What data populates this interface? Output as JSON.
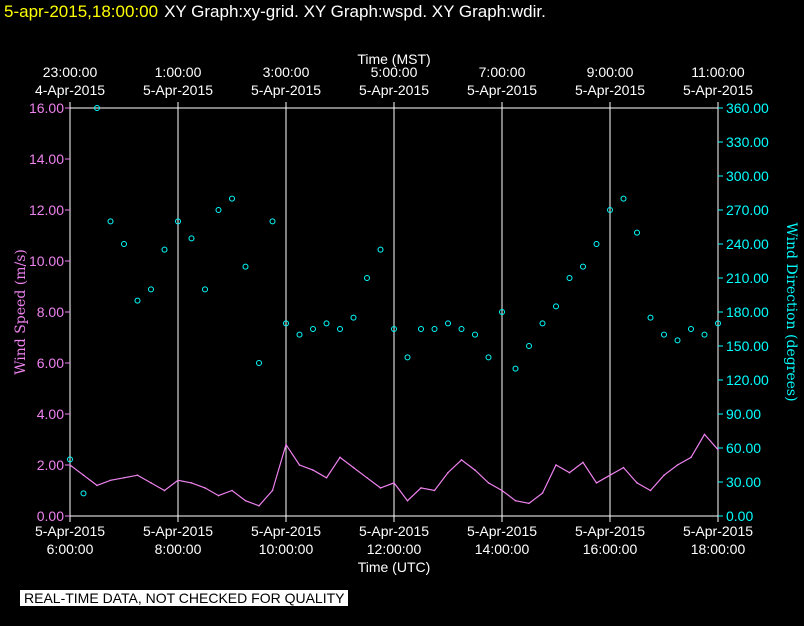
{
  "header": {
    "timestamp": "5-apr-2015,18:00:00",
    "graph_title": "XY Graph:xy-grid.  XY Graph:wspd.  XY Graph:wdir."
  },
  "footer_note": "REAL-TIME DATA, NOT CHECKED FOR QUALITY",
  "colors": {
    "background": "#000000",
    "speed": "#ee82ee",
    "direction": "#00ffff",
    "header_time": "#ffff00"
  },
  "chart_data": {
    "type": "line",
    "top_axis_title": "Time (MST)",
    "bottom_axis_title": "Time (UTC)",
    "left_axis_label": "Wind Speed (m/s)",
    "right_axis_label": "Wind Direction (degrees)",
    "x_range_utc_hours": [
      6,
      18
    ],
    "left_ylim": [
      0,
      16
    ],
    "right_ylim": [
      0,
      360
    ],
    "grid": "vertical lines at every 2-hour tick",
    "bottom_ticks": [
      {
        "t": 6,
        "date": "5-Apr-2015",
        "time": "6:00:00"
      },
      {
        "t": 8,
        "date": "5-Apr-2015",
        "time": "8:00:00"
      },
      {
        "t": 10,
        "date": "5-Apr-2015",
        "time": "10:00:00"
      },
      {
        "t": 12,
        "date": "5-Apr-2015",
        "time": "12:00:00"
      },
      {
        "t": 14,
        "date": "5-Apr-2015",
        "time": "14:00:00"
      },
      {
        "t": 16,
        "date": "5-Apr-2015",
        "time": "16:00:00"
      },
      {
        "t": 18,
        "date": "5-Apr-2015",
        "time": "18:00:00"
      }
    ],
    "top_ticks": [
      {
        "t": 6,
        "time": "23:00:00",
        "date": "4-Apr-2015"
      },
      {
        "t": 8,
        "time": "1:00:00",
        "date": "5-Apr-2015"
      },
      {
        "t": 10,
        "time": "3:00:00",
        "date": "5-Apr-2015"
      },
      {
        "t": 12,
        "time": "5:00:00",
        "date": "5-Apr-2015"
      },
      {
        "t": 14,
        "time": "7:00:00",
        "date": "5-Apr-2015"
      },
      {
        "t": 16,
        "time": "9:00:00",
        "date": "5-Apr-2015"
      },
      {
        "t": 18,
        "time": "11:00:00",
        "date": "5-Apr-2015"
      }
    ],
    "left_ticks": [
      "0.00",
      "2.00",
      "4.00",
      "6.00",
      "8.00",
      "10.00",
      "12.00",
      "14.00",
      "16.00"
    ],
    "right_ticks": [
      "0.00",
      "30.00",
      "60.00",
      "90.00",
      "120.00",
      "150.00",
      "180.00",
      "210.00",
      "240.00",
      "270.00",
      "300.00",
      "330.00",
      "360.00"
    ],
    "series": [
      {
        "kind": "line",
        "axis": "left",
        "color": "#ee82ee",
        "x": [
          6.0,
          6.25,
          6.5,
          6.75,
          7.0,
          7.25,
          7.5,
          7.75,
          8.0,
          8.25,
          8.5,
          8.75,
          9.0,
          9.25,
          9.5,
          9.75,
          10.0,
          10.25,
          10.5,
          10.75,
          11.0,
          11.25,
          11.5,
          11.75,
          12.0,
          12.25,
          12.5,
          12.75,
          13.0,
          13.25,
          13.5,
          13.75,
          14.0,
          14.25,
          14.5,
          14.75,
          15.0,
          15.25,
          15.5,
          15.75,
          16.0,
          16.25,
          16.5,
          16.75,
          17.0,
          17.25,
          17.5,
          17.75,
          18.0
        ],
        "y": [
          2.0,
          1.6,
          1.2,
          1.4,
          1.5,
          1.6,
          1.3,
          1.0,
          1.4,
          1.3,
          1.1,
          0.8,
          1.0,
          0.6,
          0.4,
          1.0,
          2.8,
          2.0,
          1.8,
          1.5,
          2.3,
          1.9,
          1.5,
          1.1,
          1.3,
          0.6,
          1.1,
          1.0,
          1.7,
          2.2,
          1.8,
          1.3,
          1.0,
          0.6,
          0.5,
          0.9,
          2.0,
          1.7,
          2.1,
          1.3,
          1.6,
          1.9,
          1.3,
          1.0,
          1.6,
          2.0,
          2.3,
          3.2,
          2.6
        ]
      },
      {
        "kind": "scatter",
        "axis": "right",
        "color": "#00ffff",
        "x": [
          6.0,
          6.25,
          6.5,
          6.75,
          7.0,
          7.25,
          7.5,
          7.75,
          8.0,
          8.25,
          8.5,
          8.75,
          9.0,
          9.25,
          9.5,
          9.75,
          10.0,
          10.25,
          10.5,
          10.75,
          11.0,
          11.25,
          11.5,
          11.75,
          12.0,
          12.25,
          12.5,
          12.75,
          13.0,
          13.25,
          13.5,
          13.75,
          14.0,
          14.25,
          14.5,
          14.75,
          15.0,
          15.25,
          15.5,
          15.75,
          16.0,
          16.25,
          16.5,
          16.75,
          17.0,
          17.25,
          17.5,
          17.75,
          18.0
        ],
        "y": [
          50,
          20,
          360,
          260,
          240,
          190,
          200,
          235,
          260,
          245,
          200,
          270,
          280,
          220,
          135,
          260,
          170,
          160,
          165,
          170,
          165,
          175,
          210,
          235,
          165,
          140,
          165,
          165,
          170,
          165,
          160,
          140,
          180,
          130,
          150,
          170,
          185,
          210,
          220,
          240,
          270,
          280,
          250,
          175,
          160,
          155,
          165,
          160,
          170
        ]
      }
    ]
  }
}
